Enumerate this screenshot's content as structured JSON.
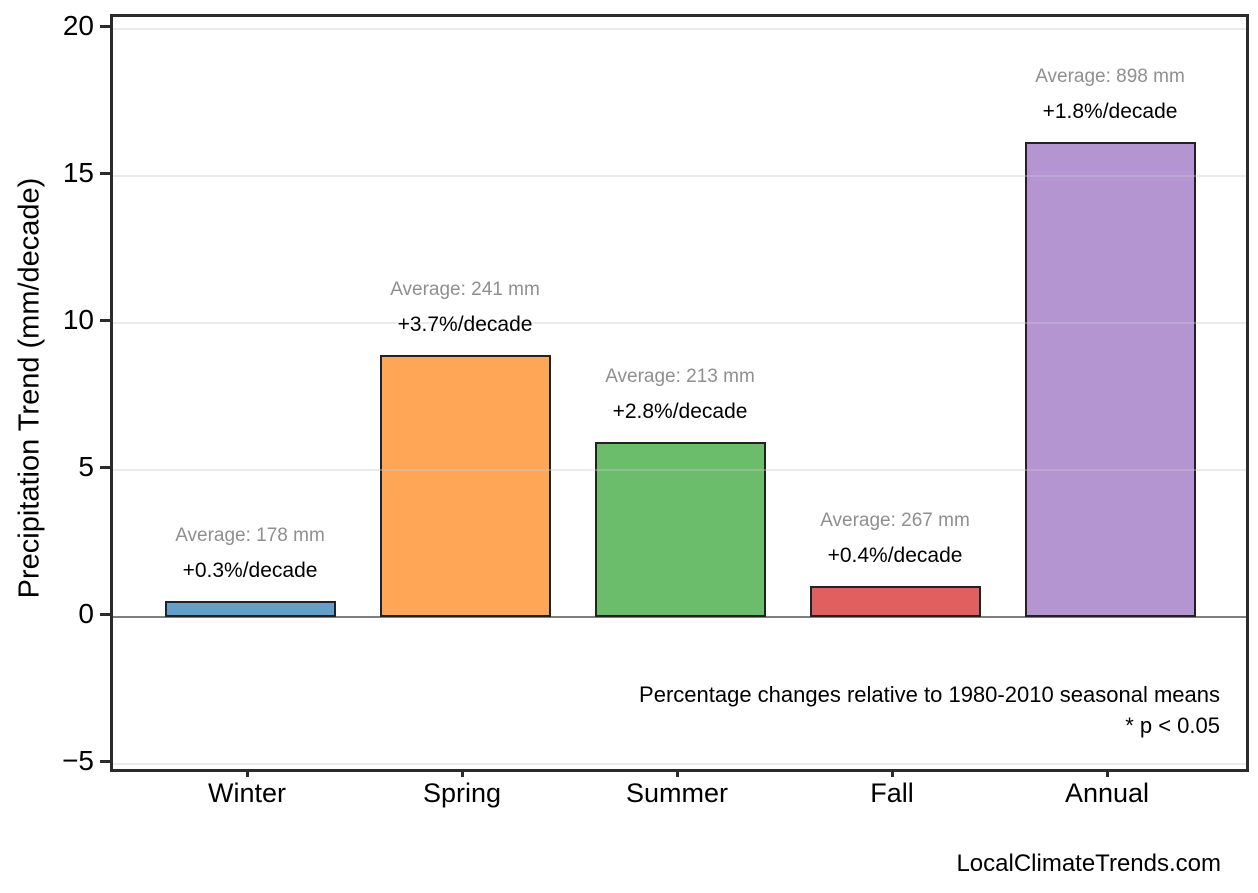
{
  "chart_data": {
    "type": "bar",
    "title": "",
    "xlabel": "",
    "ylabel": "Precipitation Trend (mm/decade)",
    "categories": [
      "Winter",
      "Spring",
      "Summer",
      "Fall",
      "Annual"
    ],
    "values": [
      0.534,
      8.917,
      5.964,
      1.068,
      16.164
    ],
    "bar_colors": [
      "#62a0ca",
      "#ffa556",
      "#6bbc6b",
      "#e25f5f",
      "#b494d1"
    ],
    "bar_edge_color": "#222222",
    "annotations": [
      {
        "average": "Average: 178 mm",
        "trend": "+0.3%/decade"
      },
      {
        "average": "Average: 241 mm",
        "trend": "+3.7%/decade"
      },
      {
        "average": "Average: 213 mm",
        "trend": "+2.8%/decade"
      },
      {
        "average": "Average: 267 mm",
        "trend": "+0.4%/decade"
      },
      {
        "average": "Average: 898 mm",
        "trend": "+1.8%/decade"
      }
    ],
    "yticks": [
      -5,
      0,
      5,
      10,
      15,
      20
    ],
    "ylim": [
      -5.17,
      20.41
    ],
    "grid": true,
    "grid_values": [
      -5,
      5,
      10,
      15,
      20
    ],
    "zero_line_color": "#7f7f7f",
    "legend": "none",
    "notes": [
      "Percentage changes relative to 1980-2010 seasonal means",
      "* p < 0.05"
    ]
  },
  "footer": {
    "watermark": "LocalClimateTrends.com"
  },
  "colors": {
    "frame": "#2b2b2b",
    "average_text": "#8f8f8f",
    "trend_text": "#000000",
    "gridline": "#cbcbcb"
  }
}
